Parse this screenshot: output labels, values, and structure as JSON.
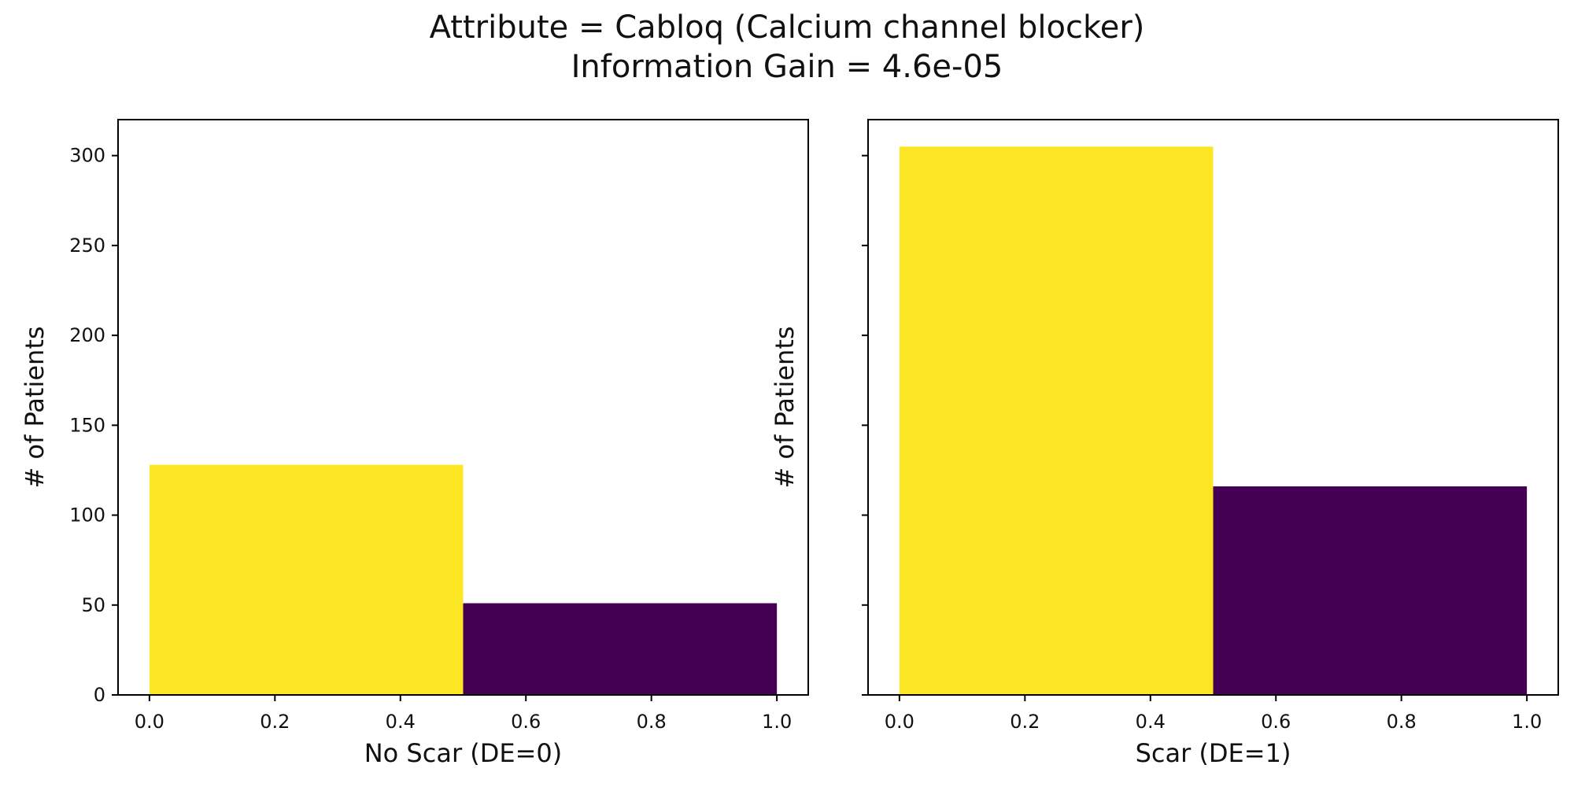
{
  "title": {
    "line1": "Attribute = Cabloq (Calcium channel blocker)",
    "line2": "Information Gain = 4.6e-05"
  },
  "colors": {
    "yellow": "#fde725",
    "purple": "#440154",
    "axis": "#000000"
  },
  "chart_data": [
    {
      "type": "bar",
      "bins": [
        {
          "x_start": 0.0,
          "x_end": 0.5,
          "value": 128,
          "color": "#fde725"
        },
        {
          "x_start": 0.5,
          "x_end": 1.0,
          "value": 51,
          "color": "#440154"
        }
      ],
      "xlabel": "No Scar (DE=0)",
      "ylabel": "# of Patients",
      "xlim": [
        -0.05,
        1.05
      ],
      "ylim": [
        0,
        320
      ],
      "xticks": [
        "0.0",
        "0.2",
        "0.4",
        "0.6",
        "0.8",
        "1.0"
      ],
      "yticks": [
        "0",
        "50",
        "100",
        "150",
        "200",
        "250",
        "300"
      ],
      "show_ytick_labels": true
    },
    {
      "type": "bar",
      "bins": [
        {
          "x_start": 0.0,
          "x_end": 0.5,
          "value": 305,
          "color": "#fde725"
        },
        {
          "x_start": 0.5,
          "x_end": 1.0,
          "value": 116,
          "color": "#440154"
        }
      ],
      "xlabel": "Scar (DE=1)",
      "ylabel": "# of Patients",
      "xlim": [
        -0.05,
        1.05
      ],
      "ylim": [
        0,
        320
      ],
      "xticks": [
        "0.0",
        "0.2",
        "0.4",
        "0.6",
        "0.8",
        "1.0"
      ],
      "yticks": [
        "0",
        "50",
        "100",
        "150",
        "200",
        "250",
        "300"
      ],
      "show_ytick_labels": false
    }
  ]
}
